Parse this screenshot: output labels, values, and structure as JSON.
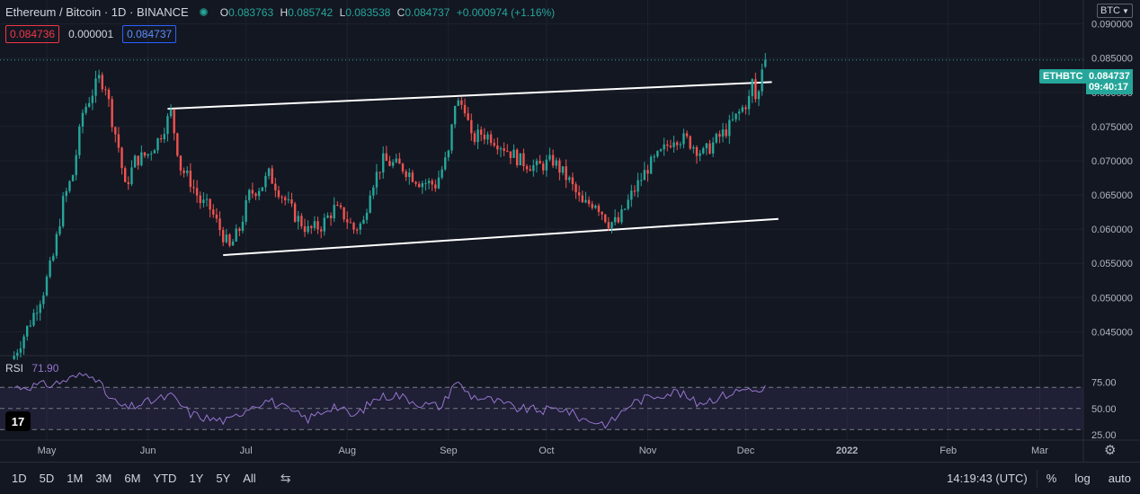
{
  "legend": {
    "symbol": "Ethereum / Bitcoin · 1D · BINANCE",
    "ohlc": [
      {
        "k": "O",
        "v": "0.083763"
      },
      {
        "k": "H",
        "v": "0.085742"
      },
      {
        "k": "L",
        "v": "0.083538"
      },
      {
        "k": "C",
        "v": "0.084737"
      }
    ],
    "change": "+0.000974 (+1.16%)",
    "sell_price": "0.084736",
    "spread": "0.000001",
    "buy_price": "0.084737"
  },
  "currency_button": "BTC",
  "symbol_tag": "ETHBTC",
  "last_price": "0.084737",
  "countdown": "09:40:17",
  "rsi": {
    "name": "RSI",
    "value": "71.90",
    "color": "#9575cd"
  },
  "logo_text": "17",
  "timeframes": [
    "1D",
    "5D",
    "1M",
    "3M",
    "6M",
    "YTD",
    "1Y",
    "5Y",
    "All"
  ],
  "clock": "14:19:43 (UTC)",
  "scale_options": [
    "%",
    "log",
    "auto"
  ],
  "colors": {
    "up": "#26a69a",
    "down": "#ef5350",
    "background": "#131722",
    "rsi": "#9575cd",
    "trendline": "#ffffff"
  },
  "icons": {
    "calendar": "calendar-range-icon",
    "settings": "gear-icon"
  },
  "chart_data": {
    "type": "candlestick",
    "x_axis_labels": [
      "May",
      "Jun",
      "Jul",
      "Aug",
      "Sep",
      "Oct",
      "Nov",
      "Dec",
      "2022",
      "Feb",
      "Mar"
    ],
    "y_axis_ticks": [
      "0.090000",
      "0.085000",
      "0.080000",
      "0.075000",
      "0.070000",
      "0.065000",
      "0.060000",
      "0.055000",
      "0.050000",
      "0.045000"
    ],
    "y_range": [
      0.0415,
      0.0935
    ],
    "rsi_ticks": [
      "75.00",
      "50.00",
      "25.00"
    ],
    "rsi_range": [
      20,
      100
    ],
    "rsi_band": [
      30,
      70
    ],
    "price_anchors": [
      [
        "2021-04-21",
        0.0415
      ],
      [
        "2021-04-26",
        0.0465
      ],
      [
        "2021-04-30",
        0.051
      ],
      [
        "2021-05-03",
        0.056
      ],
      [
        "2021-05-06",
        0.064
      ],
      [
        "2021-05-09",
        0.068
      ],
      [
        "2021-05-12",
        0.077
      ],
      [
        "2021-05-15",
        0.08
      ],
      [
        "2021-05-17",
        0.082
      ],
      [
        "2021-05-19",
        0.081
      ],
      [
        "2021-05-21",
        0.076
      ],
      [
        "2021-05-23",
        0.072
      ],
      [
        "2021-05-25",
        0.066
      ],
      [
        "2021-05-28",
        0.07
      ],
      [
        "2021-06-01",
        0.071
      ],
      [
        "2021-06-04",
        0.073
      ],
      [
        "2021-06-07",
        0.076
      ],
      [
        "2021-06-08",
        0.077
      ],
      [
        "2021-06-11",
        0.069
      ],
      [
        "2021-06-14",
        0.067
      ],
      [
        "2021-06-17",
        0.064
      ],
      [
        "2021-06-20",
        0.063
      ],
      [
        "2021-06-23",
        0.06
      ],
      [
        "2021-06-26",
        0.0572
      ],
      [
        "2021-06-29",
        0.06
      ],
      [
        "2021-07-02",
        0.065
      ],
      [
        "2021-07-06",
        0.0665
      ],
      [
        "2021-07-08",
        0.068
      ],
      [
        "2021-07-12",
        0.065
      ],
      [
        "2021-07-16",
        0.062
      ],
      [
        "2021-07-20",
        0.0598
      ],
      [
        "2021-07-24",
        0.0605
      ],
      [
        "2021-07-28",
        0.063
      ],
      [
        "2021-07-31",
        0.062
      ],
      [
        "2021-08-03",
        0.06
      ],
      [
        "2021-08-06",
        0.061
      ],
      [
        "2021-08-08",
        0.066
      ],
      [
        "2021-08-12",
        0.07
      ],
      [
        "2021-08-18",
        0.069
      ],
      [
        "2021-08-23",
        0.067
      ],
      [
        "2021-08-28",
        0.0665
      ],
      [
        "2021-09-01",
        0.071
      ],
      [
        "2021-09-03",
        0.0785
      ],
      [
        "2021-09-06",
        0.078
      ],
      [
        "2021-09-08",
        0.073
      ],
      [
        "2021-09-11",
        0.074
      ],
      [
        "2021-09-14",
        0.0735
      ],
      [
        "2021-09-18",
        0.072
      ],
      [
        "2021-09-23",
        0.07
      ],
      [
        "2021-09-28",
        0.069
      ],
      [
        "2021-10-03",
        0.07
      ],
      [
        "2021-10-08",
        0.067
      ],
      [
        "2021-10-12",
        0.0635
      ],
      [
        "2021-10-16",
        0.064
      ],
      [
        "2021-10-20",
        0.061
      ],
      [
        "2021-10-23",
        0.061
      ],
      [
        "2021-10-27",
        0.065
      ],
      [
        "2021-11-01",
        0.069
      ],
      [
        "2021-11-05",
        0.071
      ],
      [
        "2021-11-09",
        0.0735
      ],
      [
        "2021-11-13",
        0.073
      ],
      [
        "2021-11-18",
        0.071
      ],
      [
        "2021-11-22",
        0.073
      ],
      [
        "2021-11-26",
        0.075
      ],
      [
        "2021-11-29",
        0.077
      ],
      [
        "2021-12-02",
        0.079
      ],
      [
        "2021-12-03",
        0.0815
      ],
      [
        "2021-12-04",
        0.079
      ],
      [
        "2021-12-05",
        0.08
      ],
      [
        "2021-12-06",
        0.0838
      ],
      [
        "2021-12-07",
        0.0847
      ]
    ],
    "rsi_anchors": [
      [
        "2021-04-21",
        70
      ],
      [
        "2021-05-03",
        73
      ],
      [
        "2021-05-10",
        80
      ],
      [
        "2021-05-15",
        84
      ],
      [
        "2021-05-20",
        60
      ],
      [
        "2021-05-25",
        50
      ],
      [
        "2021-06-01",
        56
      ],
      [
        "2021-06-08",
        62
      ],
      [
        "2021-06-14",
        45
      ],
      [
        "2021-06-20",
        40
      ],
      [
        "2021-06-26",
        38
      ],
      [
        "2021-07-02",
        52
      ],
      [
        "2021-07-08",
        58
      ],
      [
        "2021-07-14",
        48
      ],
      [
        "2021-07-20",
        40
      ],
      [
        "2021-07-28",
        53
      ],
      [
        "2021-08-03",
        42
      ],
      [
        "2021-08-10",
        60
      ],
      [
        "2021-08-16",
        63
      ],
      [
        "2021-08-24",
        54
      ],
      [
        "2021-08-30",
        52
      ],
      [
        "2021-09-03",
        76
      ],
      [
        "2021-09-08",
        62
      ],
      [
        "2021-09-14",
        58
      ],
      [
        "2021-09-22",
        50
      ],
      [
        "2021-09-30",
        48
      ],
      [
        "2021-10-06",
        50
      ],
      [
        "2021-10-12",
        40
      ],
      [
        "2021-10-20",
        35
      ],
      [
        "2021-10-27",
        55
      ],
      [
        "2021-11-04",
        63
      ],
      [
        "2021-11-10",
        66
      ],
      [
        "2021-11-16",
        55
      ],
      [
        "2021-11-22",
        60
      ],
      [
        "2021-11-28",
        66
      ],
      [
        "2021-12-03",
        70
      ],
      [
        "2021-12-05",
        63
      ],
      [
        "2021-12-07",
        71.9
      ]
    ],
    "trendlines": [
      {
        "from": [
          "2021-06-07",
          0.0776
        ],
        "to": [
          "2021-12-09",
          0.0815
        ]
      },
      {
        "from": [
          "2021-06-24",
          0.0562
        ],
        "to": [
          "2021-12-11",
          0.0615
        ]
      }
    ]
  }
}
